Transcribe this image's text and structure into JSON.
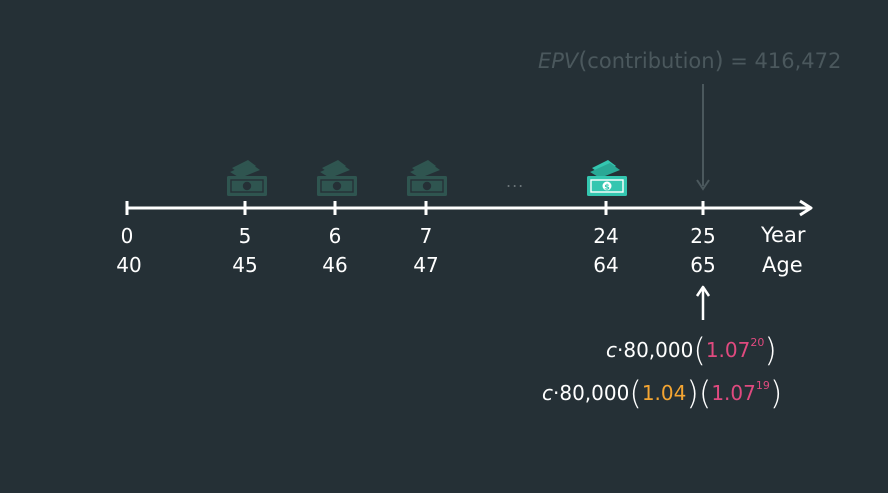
{
  "epv": {
    "function": "EPV",
    "argument": "contribution",
    "equals": "=",
    "value": "416,472"
  },
  "timeline": {
    "ticks": [
      {
        "year": "0",
        "age": "40"
      },
      {
        "year": "5",
        "age": "45"
      },
      {
        "year": "6",
        "age": "46"
      },
      {
        "year": "7",
        "age": "47"
      },
      {
        "year": "24",
        "age": "64"
      },
      {
        "year": "25",
        "age": "65"
      }
    ],
    "ellipsis": "...",
    "row_labels": {
      "year": "Year",
      "age": "Age"
    }
  },
  "payments": [
    {
      "at_year": "5",
      "icon": "money-icon",
      "faded": true
    },
    {
      "at_year": "6",
      "icon": "money-icon",
      "faded": true
    },
    {
      "at_year": "7",
      "icon": "money-icon",
      "faded": true
    },
    {
      "at_year": "24",
      "icon": "money-icon",
      "faded": false
    }
  ],
  "formulas": {
    "line1": {
      "c": "c",
      "dot": "·",
      "base": "80,000",
      "factor": "1.07",
      "exponent": "20"
    },
    "line2": {
      "c": "c",
      "dot": "·",
      "base": "80,000",
      "factor1": "1.04",
      "factor2": "1.07",
      "exponent": "19"
    }
  },
  "colors": {
    "background": "#253036",
    "pink": "#e04a7f",
    "orange": "#f4a532",
    "money_bright": "#34c6b0",
    "money_faded": "#2f5550",
    "muted_text": "#4b585d"
  }
}
